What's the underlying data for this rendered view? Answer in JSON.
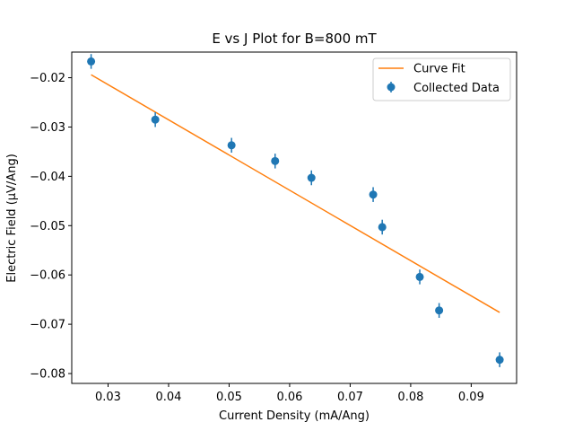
{
  "chart_data": {
    "type": "scatter",
    "title": "E vs J Plot for B=800 mT",
    "xlabel": "Current Density (mA/Ang)",
    "ylabel": "Electric Field (μV/Ang)",
    "xlim": [
      0.024,
      0.0975
    ],
    "ylim": [
      -0.082,
      -0.0148
    ],
    "x_ticks": [
      0.03,
      0.04,
      0.05,
      0.06,
      0.07,
      0.08,
      0.09
    ],
    "x_tick_labels": [
      "0.03",
      "0.04",
      "0.05",
      "0.06",
      "0.07",
      "0.08",
      "0.09"
    ],
    "y_ticks": [
      -0.02,
      -0.03,
      -0.04,
      -0.05,
      -0.06,
      -0.07,
      -0.08
    ],
    "y_tick_labels": [
      "−0.02",
      "−0.03",
      "−0.04",
      "−0.05",
      "−0.06",
      "−0.07",
      "−0.08"
    ],
    "grid": false,
    "legend": {
      "placement": "top-right",
      "entries": [
        "Curve Fit",
        "Collected Data"
      ]
    },
    "series": [
      {
        "name": "Collected Data",
        "kind": "errorbar",
        "color": "#1f77b4",
        "x": [
          0.0272,
          0.0378,
          0.0504,
          0.0576,
          0.0636,
          0.0738,
          0.0753,
          0.0815,
          0.0847,
          0.0947
        ],
        "y": [
          -0.0167,
          -0.0285,
          -0.0337,
          -0.0369,
          -0.0403,
          -0.0437,
          -0.0503,
          -0.0604,
          -0.0672,
          -0.0772
        ],
        "yerr": [
          0.0015,
          0.0015,
          0.0015,
          0.0015,
          0.0015,
          0.0015,
          0.0015,
          0.0015,
          0.0015,
          0.0015
        ]
      },
      {
        "name": "Curve Fit",
        "kind": "line",
        "color": "#ff7f0e",
        "x": [
          0.0272,
          0.0947
        ],
        "y": [
          -0.0194,
          -0.0676
        ]
      }
    ]
  }
}
